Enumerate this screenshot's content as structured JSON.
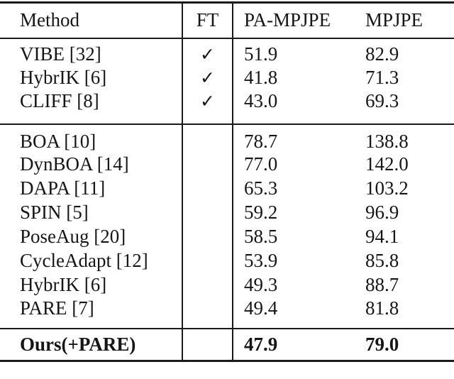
{
  "page": {
    "background_color": "#ffffff",
    "text_color": "#161616",
    "rule_color": "#1a1a1a"
  },
  "table": {
    "headers": {
      "method": "Method",
      "ft": "FT",
      "pa_mpjpe": "PA-MPJPE",
      "mpjpe": "MPJPE"
    },
    "check_glyph": "✓",
    "rows": [
      {
        "method": "VIBE [32]",
        "ft": "✓",
        "pa_mpjpe": "51.9",
        "mpjpe": "82.9"
      },
      {
        "method": "HybrIK [6]",
        "ft": "✓",
        "pa_mpjpe": "41.8",
        "mpjpe": "71.3"
      },
      {
        "method": "CLIFF [8]",
        "ft": "✓",
        "pa_mpjpe": "43.0",
        "mpjpe": "69.3"
      },
      {
        "method": "BOA [10]",
        "ft": "",
        "pa_mpjpe": "78.7",
        "mpjpe": "138.8"
      },
      {
        "method": "DynBOA [14]",
        "ft": "",
        "pa_mpjpe": "77.0",
        "mpjpe": "142.0"
      },
      {
        "method": "DAPA [11]",
        "ft": "",
        "pa_mpjpe": "65.3",
        "mpjpe": "103.2"
      },
      {
        "method": "SPIN [5]",
        "ft": "",
        "pa_mpjpe": "59.2",
        "mpjpe": "96.9"
      },
      {
        "method": "PoseAug [20]",
        "ft": "",
        "pa_mpjpe": "58.5",
        "mpjpe": "94.1"
      },
      {
        "method": "CycleAdapt [12]",
        "ft": "",
        "pa_mpjpe": "53.9",
        "mpjpe": "85.8"
      },
      {
        "method": "HybrIK [6]",
        "ft": "",
        "pa_mpjpe": "49.3",
        "mpjpe": "88.7"
      },
      {
        "method": "PARE [7]",
        "ft": "",
        "pa_mpjpe": "49.4",
        "mpjpe": "81.8"
      },
      {
        "method": "Ours(+PARE)",
        "ft": "",
        "pa_mpjpe": "47.9",
        "mpjpe": "79.0"
      }
    ]
  }
}
